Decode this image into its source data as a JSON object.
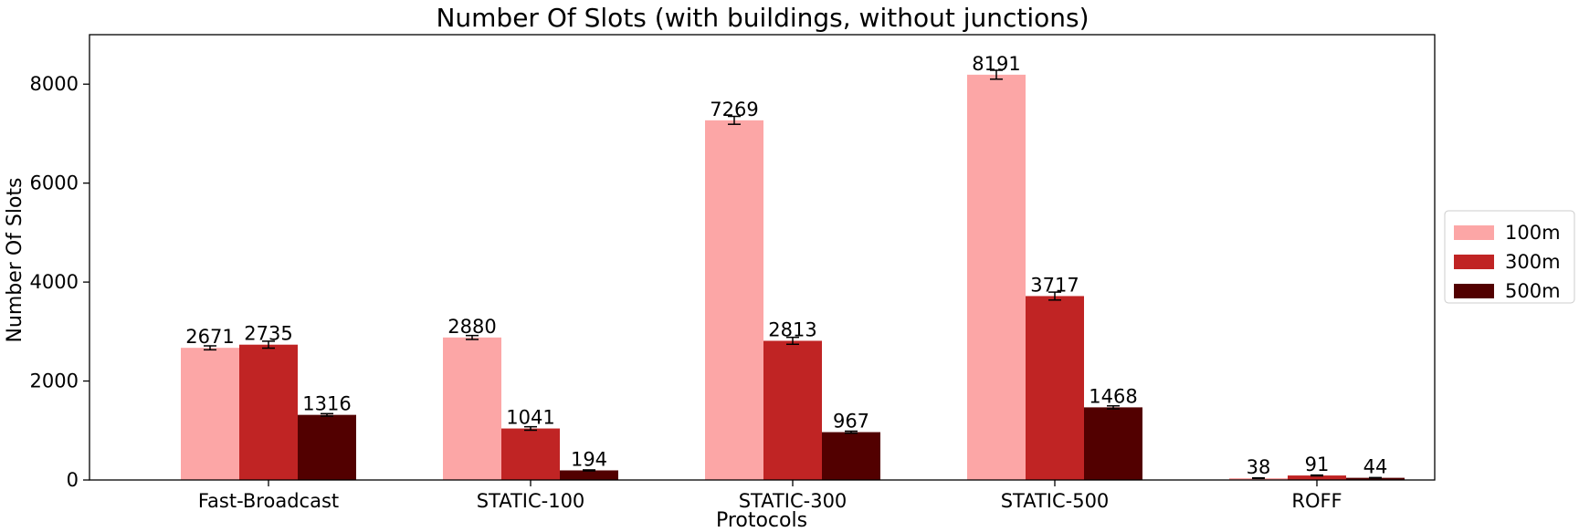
{
  "chart_data": {
    "type": "bar",
    "title": "Number Of Slots (with buildings, without junctions)",
    "xlabel": "Protocols",
    "ylabel": "Number Of Slots",
    "categories": [
      "Fast-Broadcast",
      "STATIC-100",
      "STATIC-300",
      "STATIC-500",
      "ROFF"
    ],
    "series": [
      {
        "name": "100m",
        "color": "#fca6a6",
        "values": [
          2671,
          2880,
          7269,
          8191,
          38
        ],
        "errors": [
          40,
          40,
          80,
          90,
          5
        ]
      },
      {
        "name": "300m",
        "color": "#c02424",
        "values": [
          2735,
          1041,
          2813,
          3717,
          91
        ],
        "errors": [
          70,
          35,
          70,
          80,
          8
        ]
      },
      {
        "name": "500m",
        "color": "#520000",
        "values": [
          1316,
          194,
          967,
          1468,
          44
        ],
        "errors": [
          25,
          10,
          20,
          30,
          5
        ]
      }
    ],
    "data_labels": [
      [
        "2671",
        "2880",
        "7269",
        "8191",
        "38"
      ],
      [
        "2735",
        "1041",
        "2813",
        "3717",
        "91"
      ],
      [
        "1316",
        "194",
        "967",
        "1468",
        "44"
      ]
    ],
    "ylim": [
      0,
      9000
    ],
    "yticks": [
      0,
      2000,
      4000,
      6000,
      8000
    ],
    "ytick_labels": [
      "0",
      "2000",
      "4000",
      "6000",
      "8000"
    ],
    "grid": false,
    "legend_position": "right",
    "error_bars": true
  }
}
